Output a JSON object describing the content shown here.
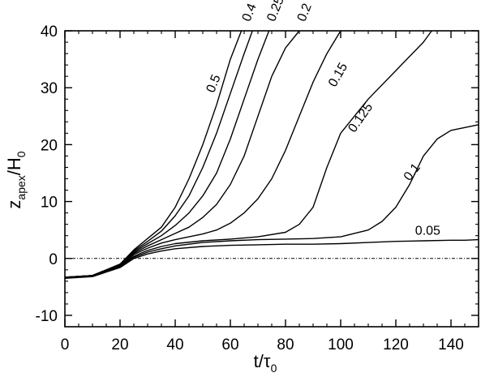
{
  "chart_data": {
    "type": "line",
    "xlabel": {
      "main": "t/τ",
      "sub": "0"
    },
    "ylabel": {
      "main": "z",
      "sub": "apex",
      "tail": "/H",
      "tail_sub": "0"
    },
    "xlim": [
      0,
      150
    ],
    "ylim": [
      -12,
      40
    ],
    "xticks": [
      "0",
      "20",
      "40",
      "60",
      "80",
      "100",
      "120",
      "140"
    ],
    "yticks": [
      "-10",
      "0",
      "10",
      "20",
      "30",
      "40"
    ],
    "reference_line": {
      "y": 0,
      "style": "dash-dot"
    },
    "grid": false,
    "series": [
      {
        "name": "0.5",
        "x": [
          0,
          10,
          20,
          25,
          30,
          35,
          40,
          45,
          50,
          55,
          60,
          64
        ],
        "y": [
          -3.3,
          -3.0,
          -1.0,
          1.5,
          3.5,
          5.5,
          9,
          14,
          20,
          27,
          35,
          40
        ]
      },
      {
        "name": "0.4",
        "x": [
          0,
          10,
          20,
          25,
          30,
          35,
          40,
          45,
          50,
          55,
          60,
          65,
          68
        ],
        "y": [
          -3.3,
          -3.0,
          -1.0,
          1.3,
          3.0,
          4.8,
          7.5,
          11,
          16,
          22,
          29,
          36,
          40
        ]
      },
      {
        "name": "0.25",
        "x": [
          0,
          10,
          20,
          25,
          30,
          35,
          40,
          45,
          50,
          55,
          60,
          65,
          70,
          74
        ],
        "y": [
          -3.3,
          -3.0,
          -1.1,
          1.1,
          2.6,
          4.0,
          5.8,
          8,
          11,
          15,
          21,
          28,
          35,
          40
        ]
      },
      {
        "name": "0.2",
        "x": [
          0,
          10,
          20,
          25,
          30,
          35,
          40,
          45,
          50,
          55,
          60,
          65,
          70,
          75,
          80,
          85
        ],
        "y": [
          -3.3,
          -3.0,
          -1.2,
          0.9,
          2.2,
          3.3,
          4.4,
          5.5,
          7.2,
          9.5,
          13,
          18,
          25,
          32,
          37,
          40
        ]
      },
      {
        "name": "0.15",
        "x": [
          0,
          10,
          20,
          25,
          30,
          35,
          40,
          45,
          50,
          55,
          60,
          65,
          70,
          75,
          80,
          85,
          90,
          95,
          100
        ],
        "y": [
          -3.4,
          -3.1,
          -1.3,
          0.7,
          1.8,
          2.7,
          3.3,
          3.8,
          4.3,
          5.0,
          6.2,
          8.0,
          10.5,
          14,
          19,
          25,
          31,
          36,
          40
        ]
      },
      {
        "name": "0.125",
        "x": [
          0,
          10,
          20,
          25,
          30,
          35,
          40,
          50,
          60,
          70,
          80,
          85,
          90,
          95,
          100,
          110,
          120,
          130,
          133
        ],
        "y": [
          -3.4,
          -3.1,
          -1.4,
          0.4,
          1.4,
          2.1,
          2.6,
          3.1,
          3.4,
          3.8,
          4.6,
          6,
          9,
          16,
          22,
          28,
          33,
          38,
          40
        ]
      },
      {
        "name": "0.1",
        "x": [
          0,
          10,
          20,
          25,
          30,
          35,
          40,
          50,
          60,
          70,
          80,
          90,
          100,
          110,
          115,
          120,
          125,
          130,
          135,
          140,
          145,
          150
        ],
        "y": [
          -3.4,
          -3.1,
          -1.5,
          0.2,
          1.1,
          1.7,
          2.2,
          2.8,
          3.1,
          3.3,
          3.4,
          3.5,
          3.8,
          5.0,
          6.5,
          9,
          13,
          18,
          21,
          22.5,
          23,
          23.5
        ]
      },
      {
        "name": "0.05",
        "x": [
          0,
          10,
          20,
          25,
          30,
          35,
          40,
          50,
          60,
          70,
          80,
          90,
          100,
          110,
          120,
          130,
          140,
          145,
          150
        ],
        "y": [
          -3.5,
          -3.2,
          -1.6,
          0,
          0.8,
          1.3,
          1.7,
          2.1,
          2.3,
          2.4,
          2.5,
          2.5,
          2.6,
          2.8,
          3.0,
          3.1,
          3.2,
          3.2,
          3.3
        ]
      }
    ]
  }
}
